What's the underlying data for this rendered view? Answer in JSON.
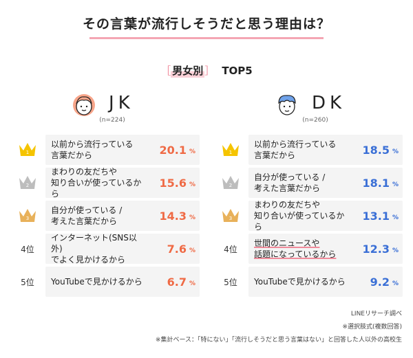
{
  "header": {
    "title": "その言葉が流行しそうだと思う理由は？",
    "subtitle_open": "［",
    "subtitle_main": "男女別",
    "subtitle_close": "］",
    "subtitle_top": "TOP5"
  },
  "colors": {
    "jk_accent": "#ef6a45",
    "dk_accent": "#3a6fd6",
    "pink": "#f4a6b3",
    "gold": "#f5c400",
    "silver": "#bdbdbd",
    "bronze": "#e8b15a"
  },
  "groups": {
    "jk": {
      "label": "JK",
      "n": "(n=224)"
    },
    "dk": {
      "label": "DK",
      "n": "(n=260)"
    }
  },
  "rank_labels": [
    "1",
    "2",
    "3",
    "4位",
    "5位"
  ],
  "percent_sign": "%",
  "chart_data": [
    {
      "type": "table",
      "group": "JK",
      "n": "(n=224)",
      "rows": [
        {
          "rank": "1",
          "reason": "以前から流行っている\n言葉だから",
          "value": "20.1"
        },
        {
          "rank": "2",
          "reason": "まわりの友だちや\n知り合いが使っているから",
          "value": "15.6"
        },
        {
          "rank": "3",
          "reason": "自分が使っている /\n考えた言葉だから",
          "value": "14.3"
        },
        {
          "rank": "4位",
          "reason": "インターネット(SNS以外)\nでよく見かけるから",
          "value": "7.6"
        },
        {
          "rank": "5位",
          "reason": "YouTubeで見かけるから",
          "value": "6.7"
        }
      ]
    },
    {
      "type": "table",
      "group": "DK",
      "n": "(n=260)",
      "rows": [
        {
          "rank": "1",
          "reason": "以前から流行っている\n言葉だから",
          "value": "18.5"
        },
        {
          "rank": "2",
          "reason": "自分が使っている /\n考えた言葉だから",
          "value": "18.1"
        },
        {
          "rank": "3",
          "reason": "まわりの友だちや\n知り合いが使っているから",
          "value": "13.1"
        },
        {
          "rank": "4位",
          "reason": "世間のニュースや\n話題になっているから",
          "value": "12.3"
        },
        {
          "rank": "5位",
          "reason": "YouTubeで見かけるから",
          "value": "9.2"
        }
      ]
    }
  ],
  "notes": {
    "source": "LINEリサーチ調べ",
    "method": "※選択肢式(複数回答)",
    "base": "※集計ベース：「特にない」「流行しそうだと思う言葉はない」と回答した人以外の高校生"
  }
}
